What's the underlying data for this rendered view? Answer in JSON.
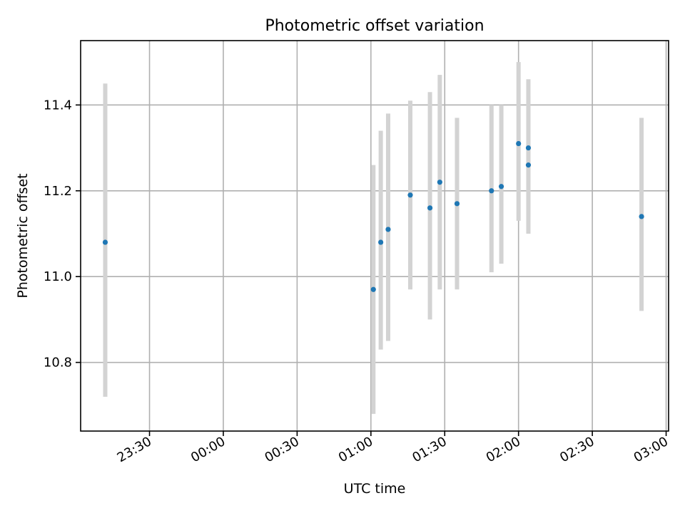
{
  "chart_data": {
    "type": "scatter",
    "title": "Photometric offset variation",
    "xlabel": "UTC time",
    "ylabel": "Photometric offset",
    "x_axis_kind": "time",
    "xlim": [
      "23:02",
      "03:01"
    ],
    "ylim": [
      10.64,
      11.55
    ],
    "x_ticks": [
      "23:30",
      "00:00",
      "00:30",
      "01:00",
      "01:30",
      "02:00",
      "02:30",
      "03:00"
    ],
    "y_ticks": [
      10.8,
      11.0,
      11.2,
      11.4
    ],
    "grid": true,
    "point_color": "#1f77b4",
    "errorbar_color": "#d3d3d3",
    "points": [
      {
        "time": "23:12",
        "value": 11.08,
        "low": 10.72,
        "high": 11.45
      },
      {
        "time": "01:01",
        "value": 10.97,
        "low": 10.68,
        "high": 11.26
      },
      {
        "time": "01:04",
        "value": 11.08,
        "low": 10.83,
        "high": 11.34
      },
      {
        "time": "01:07",
        "value": 11.11,
        "low": 10.85,
        "high": 11.38
      },
      {
        "time": "01:16",
        "value": 11.19,
        "low": 10.97,
        "high": 11.41
      },
      {
        "time": "01:24",
        "value": 11.16,
        "low": 10.9,
        "high": 11.43
      },
      {
        "time": "01:28",
        "value": 11.22,
        "low": 10.97,
        "high": 11.47
      },
      {
        "time": "01:35",
        "value": 11.17,
        "low": 10.97,
        "high": 11.37
      },
      {
        "time": "01:49",
        "value": 11.2,
        "low": 11.01,
        "high": 11.4
      },
      {
        "time": "01:53",
        "value": 11.21,
        "low": 11.03,
        "high": 11.4
      },
      {
        "time": "02:00",
        "value": 11.31,
        "low": 11.13,
        "high": 11.5
      },
      {
        "time": "02:04",
        "value": 11.3,
        "low": 11.14,
        "high": 11.46
      },
      {
        "time": "02:04",
        "value": 11.26,
        "low": 11.1,
        "high": 11.42
      },
      {
        "time": "02:50",
        "value": 11.14,
        "low": 10.92,
        "high": 11.37
      }
    ]
  }
}
